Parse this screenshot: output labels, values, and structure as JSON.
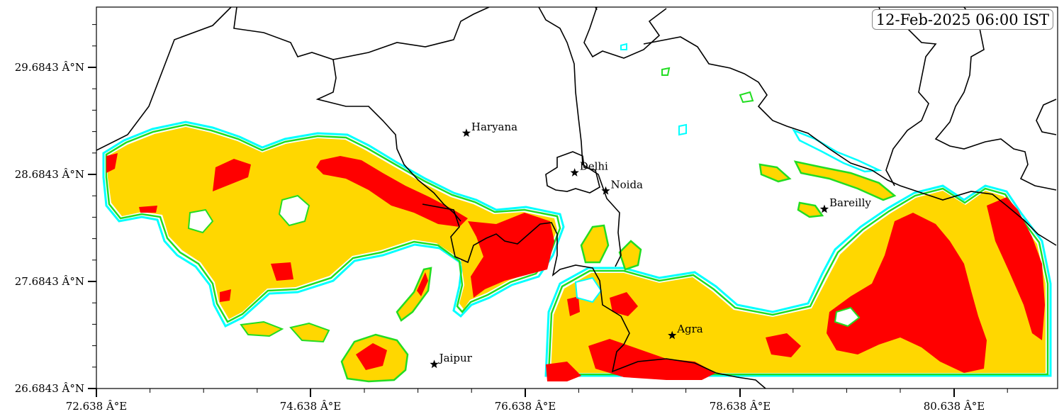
{
  "timestamp": "12-Feb-2025 06:00 IST",
  "axes": {
    "y_ticks": [
      "29.6843 Â°N",
      "28.6843 Â°N",
      "27.6843 Â°N",
      "26.6843 Â°N"
    ],
    "x_ticks": [
      "72.638 Â°E",
      "74.638 Â°E",
      "76.638 Â°E",
      "78.638 Â°E",
      "80.638 Â°E"
    ]
  },
  "cities": [
    {
      "name": "Haryana",
      "lon": 76.09,
      "lat": 29.07
    },
    {
      "name": "Delhi",
      "lon": 77.1,
      "lat": 28.7
    },
    {
      "name": "Noida",
      "lon": 77.39,
      "lat": 28.53
    },
    {
      "name": "Bareilly",
      "lon": 79.43,
      "lat": 28.36
    },
    {
      "name": "Agra",
      "lon": 78.01,
      "lat": 27.18
    },
    {
      "name": "Jaipur",
      "lon": 75.79,
      "lat": 26.91
    }
  ],
  "colors": {
    "level_outer": "#00ffff",
    "level_edge": "#22dd22",
    "level_mid": "#ffd700",
    "level_high": "#ff0000",
    "boundary": "#000000"
  }
}
